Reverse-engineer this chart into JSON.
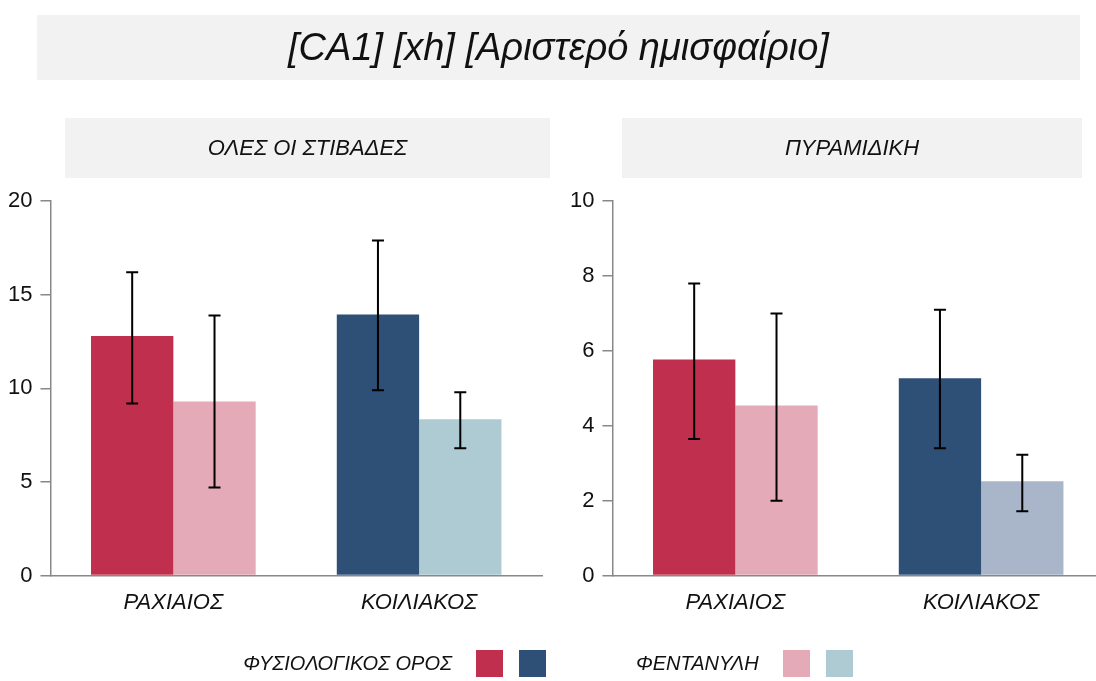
{
  "chart_data": [
    {
      "type": "bar",
      "title": "[CA1] [xh] [Αριστερό ημισφαίριο]",
      "subtitle": "ΟΛΕΣ ΟΙ ΣΤΙΒΑΔΕΣ",
      "categories": [
        "ΡΑΧΙΑΙΟΣ",
        "ΚΟΙΛΙΑΚΟΣ"
      ],
      "legend": "bottom",
      "ylim": [
        0,
        20
      ],
      "yticks": [
        0,
        5,
        10,
        15,
        20
      ],
      "series": [
        {
          "name": "ΦΥΣΙΟΛΟΓΙΚΟΣ ΟΡΟΣ",
          "colors": [
            "#c0304e",
            "#2e4f76"
          ],
          "values": [
            12.8,
            13.95
          ],
          "errors": [
            [
              9.2,
              16.2
            ],
            [
              9.9,
              17.9
            ]
          ]
        },
        {
          "name": "ΦΕΝΤΑΝΥΛΗ",
          "colors": [
            "#e5aab8",
            "#aecbd4"
          ],
          "values": [
            9.3,
            8.35
          ],
          "errors": [
            [
              4.7,
              13.9
            ],
            [
              6.8,
              9.8
            ]
          ]
        }
      ]
    },
    {
      "type": "bar",
      "subtitle": "ΠΥΡΑΜΙΔΙΚΗ",
      "categories": [
        "ΡΑΧΙΑΙΟΣ",
        "ΚΟΙΛΙΑΚΟΣ"
      ],
      "ylim": [
        0,
        10
      ],
      "yticks": [
        0,
        2,
        4,
        6,
        8,
        10
      ],
      "series": [
        {
          "colors": [
            "#c0304e",
            "#2e4f76"
          ],
          "values": [
            5.77,
            5.27
          ],
          "errors": [
            [
              3.65,
              7.8
            ],
            [
              3.4,
              7.1
            ]
          ]
        },
        {
          "colors": [
            "#e5aab8",
            "#a9b6c9"
          ],
          "values": [
            4.54,
            2.52
          ],
          "errors": [
            [
              2.0,
              7.0
            ],
            [
              1.72,
              3.23
            ]
          ]
        }
      ]
    }
  ]
}
